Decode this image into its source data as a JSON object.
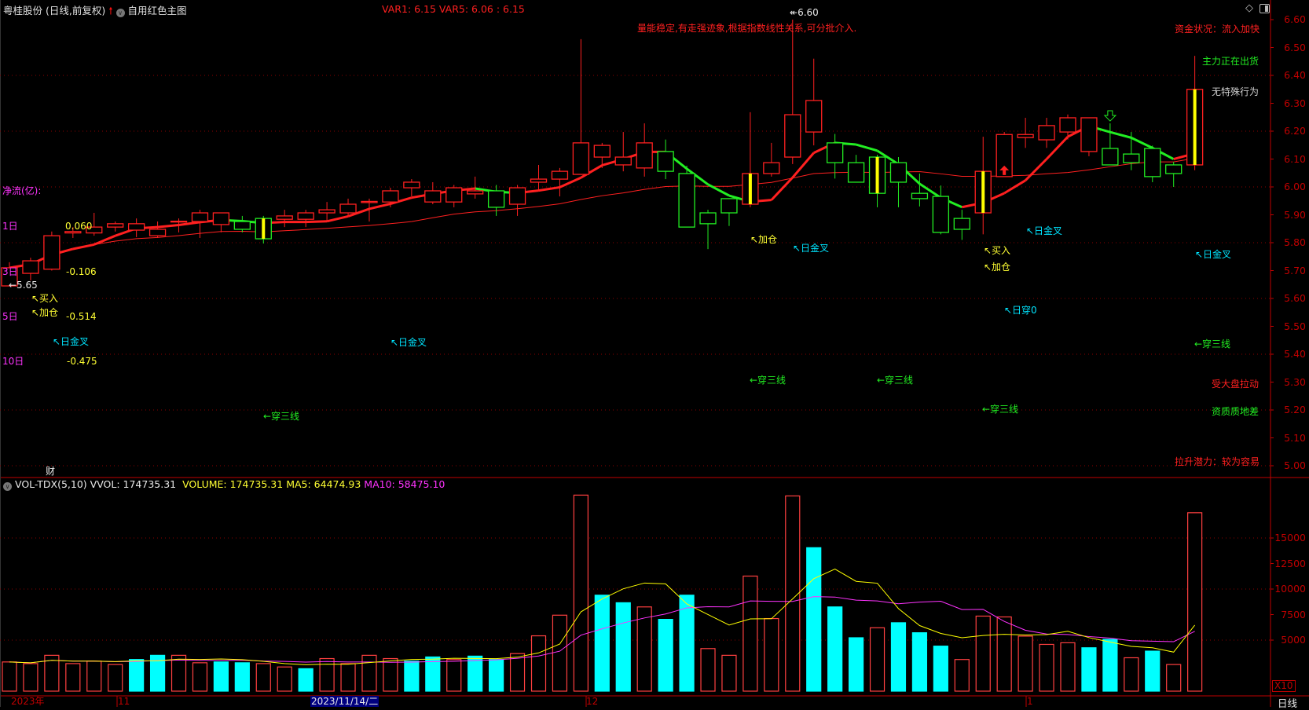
{
  "header": {
    "title": "粤桂股份 (日线,前复权)",
    "template": "自用红色主图",
    "var_readout": "VAR1: 6.15  VAR5: 6.06   : 6.15",
    "diamond_icon": "diamond-icon",
    "panel_icon": "panel-toggle-icon"
  },
  "colors": {
    "up": "#ff2020",
    "down": "#22ee22",
    "vol_down": "#00ffff",
    "signal_bar": "#ffff00",
    "axis": "#c00000",
    "grid": "#8b0000"
  },
  "annotations": {
    "top_message": "量能稳定,有走强迹象,根据指数线性关系,可分批介入.",
    "max_marker": "6.60",
    "min_marker": "←5.65",
    "net_flow_title": "净流(亿):",
    "flow_rows": [
      {
        "label": "1日",
        "value": "0.060"
      },
      {
        "label": "3日",
        "value": "-0.106"
      },
      {
        "label": "5日",
        "value": "-0.514"
      },
      {
        "label": "10日",
        "value": "-0.475"
      }
    ],
    "signals": [
      {
        "text": "↖买入",
        "cls": "ye",
        "id": "buy-signal"
      },
      {
        "text": "↖加仓",
        "cls": "ye",
        "id": "add-position-signal"
      },
      {
        "text": "↖日金叉",
        "cls": "cy",
        "id": "golden-cross-signal"
      },
      {
        "text": "↖日金叉",
        "cls": "cy",
        "id": "golden-cross-signal"
      },
      {
        "text": "←穿三线",
        "cls": "gr",
        "id": "cross-three-lines-signal"
      },
      {
        "text": "↖加仓",
        "cls": "ye",
        "id": "add-position-signal"
      },
      {
        "text": "↖日金叉",
        "cls": "cy",
        "id": "golden-cross-signal"
      },
      {
        "text": "←穿三线",
        "cls": "gr",
        "id": "cross-three-lines-signal"
      },
      {
        "text": "←穿三线",
        "cls": "gr",
        "id": "cross-three-lines-signal"
      },
      {
        "text": "↖买入",
        "cls": "ye",
        "id": "buy-signal"
      },
      {
        "text": "↖加仓",
        "cls": "ye",
        "id": "add-position-signal"
      },
      {
        "text": "↖日金叉",
        "cls": "cy",
        "id": "golden-cross-signal"
      },
      {
        "text": "↖日穿0",
        "cls": "cy",
        "id": "cross-zero-signal"
      },
      {
        "text": "←穿三线",
        "cls": "gr",
        "id": "cross-three-lines-signal"
      },
      {
        "text": "↖日金叉",
        "cls": "cy",
        "id": "golden-cross-signal"
      },
      {
        "text": "←穿三线",
        "cls": "gr",
        "id": "cross-three-lines-signal"
      }
    ],
    "status": {
      "fund_status": "资金状况：流入加快",
      "main_force": "主力正在出货",
      "behavior": "无特殊行为",
      "market": "受大盘拉动",
      "quality": "资质质地差",
      "potential": "拉升潜力：较为容易"
    },
    "finance_mark": "财"
  },
  "volume_header": {
    "indicator": "VOL-TDX(5,10)",
    "vvol": "VVOL: 174735.31",
    "volume": "VOLUME: 174735.31",
    "ma5": "MA5: 64474.93",
    "ma10": "MA10: 58475.10",
    "unit": "X10"
  },
  "time_axis": {
    "labels": [
      "2023年",
      "11",
      "12",
      "1"
    ],
    "cursor_date": "2023/11/14/二",
    "period": "日线"
  },
  "chart_data": [
    {
      "type": "candlestick",
      "ylim": [
        5.0,
        6.6
      ],
      "y_ticks": [
        "6.60",
        "6.50",
        "6.40",
        "6.30",
        "6.20",
        "6.10",
        "6.00",
        "5.90",
        "5.80",
        "5.70",
        "5.60",
        "5.50",
        "5.40",
        "5.30",
        "5.20",
        "5.10",
        "5.00"
      ],
      "grid": true,
      "candles": [
        [
          5.645,
          5.73,
          5.645,
          5.71
        ],
        [
          5.69,
          5.746,
          5.665,
          5.735
        ],
        [
          5.705,
          5.84,
          5.7,
          5.825
        ],
        [
          5.835,
          5.856,
          5.817,
          5.84
        ],
        [
          5.835,
          5.907,
          5.825,
          5.856
        ],
        [
          5.856,
          5.876,
          5.84,
          5.868
        ],
        [
          5.845,
          5.887,
          5.82,
          5.868
        ],
        [
          5.825,
          5.876,
          5.817,
          5.848
        ],
        [
          5.875,
          5.887,
          5.837,
          5.877
        ],
        [
          5.876,
          5.918,
          5.817,
          5.907
        ],
        [
          5.865,
          5.907,
          5.837,
          5.907
        ],
        [
          5.876,
          5.896,
          5.837,
          5.848
        ],
        [
          5.887,
          5.896,
          5.797,
          5.814
        ],
        [
          5.884,
          5.918,
          5.856,
          5.896
        ],
        [
          5.884,
          5.918,
          5.856,
          5.907
        ],
        [
          5.907,
          5.946,
          5.876,
          5.918
        ],
        [
          5.907,
          5.958,
          5.896,
          5.938
        ],
        [
          5.944,
          5.958,
          5.876,
          5.948
        ],
        [
          5.946,
          5.997,
          5.927,
          5.986
        ],
        [
          5.997,
          6.028,
          5.966,
          6.017
        ],
        [
          5.946,
          6.017,
          5.938,
          5.986
        ],
        [
          5.946,
          6.007,
          5.927,
          5.997
        ],
        [
          5.975,
          6.037,
          5.958,
          5.986
        ],
        [
          5.986,
          6.007,
          5.896,
          5.927
        ],
        [
          5.938,
          6.007,
          5.896,
          5.997
        ],
        [
          6.017,
          6.079,
          5.986,
          6.028
        ],
        [
          6.028,
          6.068,
          5.966,
          6.056
        ],
        [
          6.045,
          6.53,
          6.045,
          6.158
        ],
        [
          6.107,
          6.158,
          6.068,
          6.149
        ],
        [
          6.079,
          6.197,
          6.056,
          6.107
        ],
        [
          6.068,
          6.228,
          6.037,
          6.158
        ],
        [
          6.127,
          6.17,
          6.028,
          6.056
        ],
        [
          6.048,
          6.076,
          5.856,
          5.856
        ],
        [
          5.907,
          5.918,
          5.777,
          5.868
        ],
        [
          5.958,
          5.958,
          5.86,
          5.907
        ],
        [
          5.938,
          6.268,
          5.927,
          6.048
        ],
        [
          6.048,
          6.158,
          6.037,
          6.087
        ],
        [
          6.107,
          6.6,
          6.082,
          6.259
        ],
        [
          6.197,
          6.46,
          6.149,
          6.31
        ],
        [
          6.158,
          6.19,
          6.03,
          6.087
        ],
        [
          6.087,
          6.115,
          6.017,
          6.017
        ],
        [
          6.107,
          6.115,
          5.927,
          5.977
        ],
        [
          6.087,
          6.107,
          5.927,
          6.017
        ],
        [
          5.977,
          6.048,
          5.93,
          5.958
        ],
        [
          5.966,
          6.005,
          5.83,
          5.837
        ],
        [
          5.887,
          5.918,
          5.81,
          5.848
        ],
        [
          5.907,
          6.18,
          5.83,
          6.056
        ],
        [
          6.037,
          6.197,
          6.037,
          6.188
        ],
        [
          6.177,
          6.248,
          6.14,
          6.188
        ],
        [
          6.169,
          6.248,
          6.14,
          6.22
        ],
        [
          6.197,
          6.26,
          6.17,
          6.248
        ],
        [
          6.127,
          6.248,
          6.11,
          6.248
        ],
        [
          6.138,
          6.228,
          6.079,
          6.079
        ],
        [
          6.118,
          6.197,
          6.06,
          6.087
        ],
        [
          6.138,
          6.148,
          6.017,
          6.037
        ],
        [
          6.079,
          6.09,
          6.0,
          6.048
        ],
        [
          6.079,
          6.47,
          6.06,
          6.35
        ]
      ],
      "candle_fields": [
        "open",
        "high",
        "low",
        "close"
      ],
      "signal_bars": [
        12,
        35,
        41,
        46,
        56
      ],
      "up_arrow_at": 47,
      "down_arrow_at": 52,
      "lines": [
        "short moving average",
        "long moving average"
      ]
    },
    {
      "type": "bar",
      "unit": "X10",
      "y_ticks": [
        "15000",
        "12500",
        "10000",
        "7500",
        "5000"
      ],
      "ylim": [
        0,
        19500
      ],
      "values": [
        2860,
        2700,
        3510,
        2700,
        2940,
        2610,
        3100,
        3510,
        3510,
        2780,
        2860,
        2780,
        2700,
        2370,
        2200,
        3190,
        2700,
        3510,
        3190,
        2940,
        3350,
        3100,
        3430,
        3100,
        3680,
        5420,
        7440,
        19200,
        9400,
        8660,
        8250,
        7030,
        9400,
        4170,
        3510,
        11270,
        7110,
        19120,
        14050,
        8250,
        5230,
        6210,
        6700,
        5720,
        4410,
        3100,
        7350,
        7270,
        5390,
        4580,
        4740,
        4250,
        5070,
        3270,
        3920,
        2610,
        17474
      ],
      "down_days": [
        6,
        7,
        10,
        11,
        14,
        19,
        20,
        22,
        23,
        28,
        29,
        31,
        32,
        38,
        39,
        40,
        42,
        43,
        44,
        51,
        52,
        54
      ],
      "series": [
        {
          "name": "MA5",
          "color": "#ffff00"
        },
        {
          "name": "MA10",
          "color": "#ff33ff"
        }
      ]
    }
  ]
}
